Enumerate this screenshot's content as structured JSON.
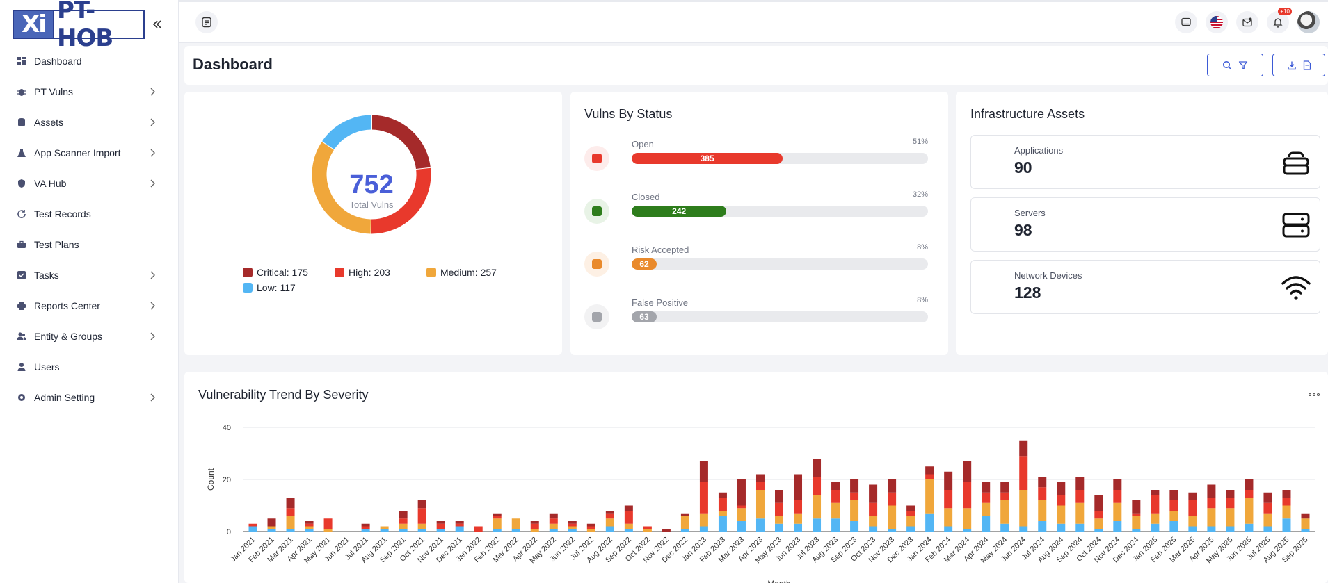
{
  "app": {
    "logo_left": "Xi",
    "logo_right": "PT-HOB"
  },
  "sidebar": {
    "items": [
      {
        "label": "Dashboard",
        "icon": "dashboard-icon",
        "has_children": false
      },
      {
        "label": "PT Vulns",
        "icon": "bug-icon",
        "has_children": true
      },
      {
        "label": "Assets",
        "icon": "database-icon",
        "has_children": true
      },
      {
        "label": "App Scanner Import",
        "icon": "flask-icon",
        "has_children": true
      },
      {
        "label": "VA Hub",
        "icon": "shield-icon",
        "has_children": true
      },
      {
        "label": "Test Records",
        "icon": "refresh-icon",
        "has_children": false
      },
      {
        "label": "Test Plans",
        "icon": "briefcase-icon",
        "has_children": false
      },
      {
        "label": "Tasks",
        "icon": "checkbox-icon",
        "has_children": true
      },
      {
        "label": "Reports Center",
        "icon": "printer-icon",
        "has_children": true
      },
      {
        "label": "Entity & Groups",
        "icon": "users-icon",
        "has_children": true
      },
      {
        "label": "Users",
        "icon": "user-icon",
        "has_children": false
      },
      {
        "label": "Admin Setting",
        "icon": "cog-icon",
        "has_children": true
      }
    ]
  },
  "topbar": {
    "notification_badge": "+10"
  },
  "page": {
    "title": "Dashboard"
  },
  "total_vulns": {
    "value": "752",
    "label": "Total Vulns",
    "legend": [
      {
        "label": "Critical: 175",
        "color": "#a52a2a"
      },
      {
        "label": "High: 203",
        "color": "#e8392c"
      },
      {
        "label": "Medium: 257",
        "color": "#f0a73b"
      },
      {
        "label": "Low: 117",
        "color": "#53b6f4"
      }
    ]
  },
  "vulns_by_status": {
    "title": "Vulns By Status",
    "rows": [
      {
        "name": "Open",
        "count": "385",
        "pct": "51%",
        "fraction": 0.51,
        "color": "#e8392c",
        "bg": "#fdeceb"
      },
      {
        "name": "Closed",
        "count": "242",
        "pct": "32%",
        "fraction": 0.32,
        "color": "#2e7d1c",
        "bg": "#e8f3e6"
      },
      {
        "name": "Risk Accepted",
        "count": "62",
        "pct": "8%",
        "fraction": 0.08,
        "color": "#e98a2c",
        "bg": "#fdf0e4"
      },
      {
        "name": "False Positive",
        "count": "63",
        "pct": "8%",
        "fraction": 0.08,
        "color": "#a3a5ab",
        "bg": "#f2f2f3"
      }
    ]
  },
  "infrastructure_assets": {
    "title": "Infrastructure Assets",
    "items": [
      {
        "name": "Applications",
        "value": "90",
        "icon": "database-stack-icon"
      },
      {
        "name": "Servers",
        "value": "98",
        "icon": "server-icon"
      },
      {
        "name": "Network Devices",
        "value": "128",
        "icon": "wifi-icon"
      }
    ]
  },
  "trend": {
    "title": "Vulnerability Trend By Severity"
  },
  "chart_data": {
    "type": "bar",
    "stacked": true,
    "title": "Vulnerability Trend By Severity",
    "xlabel": "Month",
    "ylabel": "Count",
    "ylim": [
      0,
      40
    ],
    "yticks": [
      0,
      20,
      40
    ],
    "grid": true,
    "categories": [
      "Jan 2021",
      "Feb 2021",
      "Mar 2021",
      "Apr 2021",
      "May 2021",
      "Jun 2021",
      "Jul 2021",
      "Aug 2021",
      "Sep 2021",
      "Oct 2021",
      "Nov 2021",
      "Dec 2021",
      "Jan 2022",
      "Feb 2022",
      "Mar 2022",
      "Apr 2022",
      "May 2022",
      "Jun 2022",
      "Jul 2022",
      "Aug 2022",
      "Sep 2022",
      "Oct 2022",
      "Nov 2022",
      "Dec 2022",
      "Jan 2023",
      "Feb 2023",
      "Mar 2023",
      "Apr 2023",
      "May 2023",
      "Jun 2023",
      "Jul 2023",
      "Aug 2023",
      "Sep 2023",
      "Oct 2023",
      "Nov 2023",
      "Dec 2023",
      "Jan 2024",
      "Feb 2024",
      "Mar 2024",
      "Apr 2024",
      "May 2024",
      "Jun 2024",
      "Jul 2024",
      "Aug 2024",
      "Sep 2024",
      "Oct 2024",
      "Nov 2024",
      "Dec 2024",
      "Jan 2025",
      "Feb 2025",
      "Mar 2025",
      "Apr 2025",
      "May 2025",
      "Jun 2025",
      "Jul 2025",
      "Aug 2025",
      "Sep 2025"
    ],
    "series": [
      {
        "key": "low",
        "color": "#53b6f4",
        "values": [
          2,
          1,
          1,
          1,
          0,
          0,
          1,
          1,
          1,
          1,
          1,
          2,
          0,
          1,
          1,
          0,
          1,
          1,
          0,
          2,
          1,
          0,
          0,
          1,
          2,
          6,
          4,
          5,
          3,
          3,
          5,
          5,
          4,
          2,
          1,
          2,
          7,
          2,
          1,
          6,
          3,
          2,
          4,
          3,
          3,
          1,
          4,
          1,
          3,
          4,
          2,
          2,
          2,
          3,
          2,
          5,
          1
        ]
      },
      {
        "key": "medium",
        "color": "#f0a73b",
        "values": [
          0,
          1,
          5,
          1,
          1,
          0,
          0,
          1,
          2,
          2,
          0,
          0,
          0,
          4,
          4,
          1,
          2,
          1,
          1,
          3,
          2,
          1,
          0,
          5,
          5,
          2,
          5,
          11,
          3,
          4,
          9,
          6,
          8,
          4,
          9,
          4,
          13,
          7,
          8,
          5,
          9,
          14,
          8,
          7,
          8,
          4,
          7,
          5,
          4,
          4,
          4,
          7,
          7,
          10,
          5,
          5,
          4
        ]
      },
      {
        "key": "high",
        "color": "#e8392c",
        "values": [
          1,
          0,
          3,
          1,
          4,
          0,
          1,
          0,
          2,
          6,
          2,
          1,
          2,
          1,
          0,
          2,
          2,
          1,
          1,
          2,
          5,
          1,
          0,
          0,
          12,
          5,
          1,
          3,
          5,
          5,
          7,
          5,
          3,
          5,
          5,
          2,
          2,
          7,
          10,
          4,
          3,
          13,
          5,
          4,
          5,
          3,
          5,
          1,
          7,
          4,
          6,
          4,
          4,
          3,
          4,
          3,
          0
        ]
      },
      {
        "key": "critical",
        "color": "#a52a2a",
        "values": [
          0,
          3,
          4,
          1,
          0,
          0,
          1,
          0,
          3,
          3,
          1,
          1,
          0,
          1,
          0,
          1,
          2,
          1,
          1,
          1,
          2,
          0,
          1,
          1,
          8,
          2,
          10,
          3,
          5,
          10,
          7,
          3,
          5,
          7,
          5,
          2,
          3,
          7,
          8,
          4,
          4,
          6,
          4,
          5,
          5,
          6,
          4,
          5,
          2,
          4,
          3,
          5,
          3,
          4,
          4,
          3,
          2
        ]
      }
    ]
  }
}
